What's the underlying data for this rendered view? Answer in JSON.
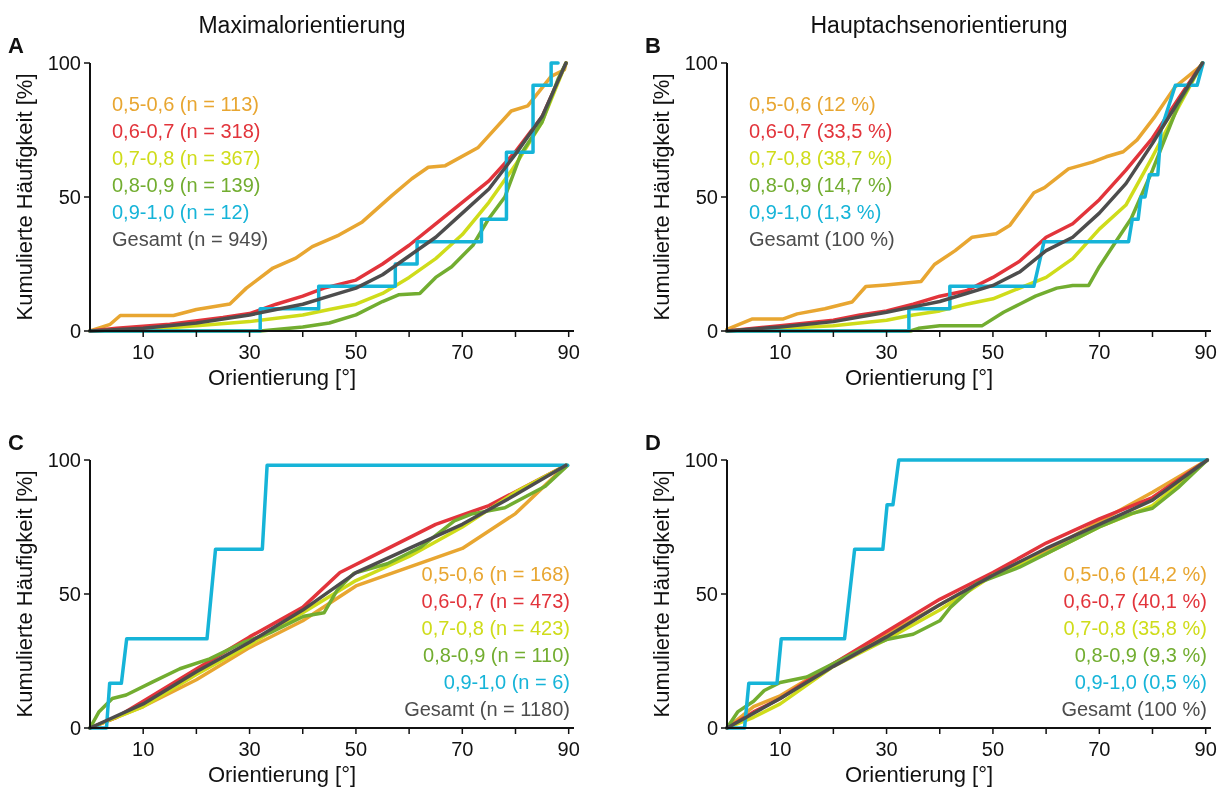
{
  "chart_data": [
    {
      "type": "line",
      "title": "Maximalorientierung",
      "annotations": [
        "A"
      ],
      "xlabel": "Orientierung [°]",
      "ylabel": "Kumulierte Häufigkeit [%]",
      "xlim": [
        0,
        91
      ],
      "xticks": [
        10,
        {
          "value": 20,
          "label": null
        },
        30,
        {
          "value": 40,
          "label": null
        },
        50,
        {
          "value": 60,
          "label": null
        },
        70,
        {
          "value": 80,
          "label": null
        },
        90
      ],
      "ylim": [
        0,
        100
      ],
      "yticks": [
        0,
        50,
        100
      ],
      "grid": false,
      "legend": "top left",
      "line_style": "solid",
      "series": [
        {
          "name": "0,5-0,6 (n = 113)",
          "color": "#e8a631",
          "x": [
            0,
            3.8,
            5.7,
            15.7,
            20,
            26.3,
            29.4,
            34.4,
            38.7,
            41.8,
            46.8,
            51.2,
            56.8,
            60.5,
            63.6,
            66.8,
            73,
            79.2,
            82.3,
            86.7,
            89.2,
            89.5
          ],
          "values": [
            0,
            2.5,
            5.8,
            5.8,
            8,
            10.1,
            16,
            23.5,
            27.2,
            31.5,
            35.8,
            40.7,
            50.6,
            56.8,
            61.1,
            61.7,
            68.5,
            82.1,
            84,
            95,
            97.5,
            100
          ]
        },
        {
          "name": "0,6-0,7 (n = 318)",
          "color": "#e2343b",
          "x": [
            0,
            5,
            15,
            25,
            30,
            35,
            40,
            44,
            50,
            55,
            60,
            65,
            70,
            75,
            80,
            85,
            89.5
          ],
          "values": [
            0,
            1,
            2.5,
            5,
            6.5,
            10,
            13,
            16,
            19,
            25,
            32,
            40,
            48,
            56,
            67,
            80,
            100
          ]
        },
        {
          "name": "0,7-0,8 (n = 367)",
          "color": "#cfdc1a",
          "x": [
            0,
            10,
            20,
            30,
            40,
            45,
            50,
            55,
            60,
            65,
            70,
            75,
            80,
            85,
            89.5
          ],
          "values": [
            0,
            0.5,
            2,
            3.5,
            6,
            8,
            10,
            14,
            20,
            27,
            36,
            48,
            62,
            78,
            100
          ]
        },
        {
          "name": "0,8-0,9 (n = 139)",
          "color": "#72ad30",
          "x": [
            0,
            32,
            40,
            45,
            50,
            55,
            58,
            62,
            65,
            68,
            72,
            75,
            78,
            81,
            85,
            88,
            89.5
          ],
          "values": [
            0,
            0,
            1.5,
            3,
            6,
            11,
            13.5,
            14,
            20,
            24,
            32,
            42,
            50,
            66,
            78,
            94,
            100
          ]
        },
        {
          "name": "0,9-1,0 (n = 12)",
          "color": "#16b4d8",
          "x": [
            0,
            32,
            32,
            43,
            43,
            57.4,
            57.4,
            61.5,
            61.5,
            73.6,
            73.6,
            78.3,
            78.3,
            83.3,
            83.3,
            86.7,
            86.7,
            88
          ],
          "values": [
            0,
            0,
            8.3,
            8.3,
            16.7,
            16.7,
            25,
            25,
            33.3,
            33.3,
            41.7,
            41.7,
            66.7,
            66.7,
            91.7,
            91.7,
            100,
            100
          ]
        },
        {
          "name": "Gesamt (n = 949)",
          "color": "#4d4d4d",
          "x": [
            0,
            10,
            20,
            30,
            35,
            40,
            45,
            50,
            55,
            60,
            65,
            70,
            75,
            80,
            85,
            89.5
          ],
          "values": [
            0,
            1,
            3,
            6,
            8,
            10,
            13,
            16,
            21,
            28,
            35,
            44,
            53,
            66,
            80,
            100
          ]
        }
      ]
    },
    {
      "type": "line",
      "title": "Hauptachsenorientierung",
      "annotations": [
        "B"
      ],
      "xlabel": "Orientierung [°]",
      "ylabel": "Kumulierte Häufigkeit [%]",
      "xlim": [
        0,
        91
      ],
      "xticks": [
        10,
        {
          "value": 20,
          "label": null
        },
        30,
        {
          "value": 40,
          "label": null
        },
        50,
        {
          "value": 60,
          "label": null
        },
        70,
        {
          "value": 80,
          "label": null
        },
        90
      ],
      "ylim": [
        0,
        100
      ],
      "yticks": [
        0,
        50,
        100
      ],
      "grid": false,
      "legend": "top left",
      "line_style": "solid",
      "series": [
        {
          "name": "0,5-0,6 (12 %)",
          "color": "#e8a631",
          "x": [
            0,
            4.8,
            10.6,
            13.2,
            18.4,
            23.5,
            26.1,
            29.9,
            36.5,
            39,
            42.9,
            46.1,
            50.6,
            53.2,
            57.7,
            59.7,
            64.2,
            68.7,
            71.3,
            74.5,
            77.1,
            80.3,
            84.2,
            89.4
          ],
          "values": [
            0.6,
            4.5,
            4.5,
            6.4,
            8.3,
            10.8,
            16.6,
            17.2,
            18.5,
            24.8,
            30,
            35,
            36.3,
            39.5,
            51.6,
            53.5,
            60.5,
            63,
            65,
            66.9,
            71.3,
            79.6,
            91,
            99.4
          ]
        },
        {
          "name": "0,6-0,7 (33,5 %)",
          "color": "#e2343b",
          "x": [
            0,
            10,
            20,
            25,
            30,
            35,
            40,
            45,
            50,
            55,
            60,
            65,
            70,
            75,
            80,
            85,
            89.4
          ],
          "values": [
            0,
            2,
            4,
            6,
            7.5,
            10,
            13,
            15,
            20,
            26,
            35,
            40,
            49,
            60,
            72,
            87,
            100
          ]
        },
        {
          "name": "0,7-0,8 (38,7 %)",
          "color": "#cfdc1a",
          "x": [
            0,
            20,
            30,
            35,
            40,
            45,
            50,
            55,
            60,
            65,
            70,
            75,
            80,
            85,
            89.4
          ],
          "values": [
            0,
            2,
            4,
            6,
            7.5,
            10,
            12,
            16,
            20,
            27,
            38,
            47,
            65,
            84,
            100
          ]
        },
        {
          "name": "0,8-0,9 (14,7 %)",
          "color": "#72ad30",
          "x": [
            0,
            34.5,
            36,
            40,
            48,
            52,
            55,
            58,
            62,
            65,
            68,
            70,
            73,
            76,
            80,
            85,
            89.4
          ],
          "values": [
            0,
            0,
            1,
            2,
            2,
            7,
            10,
            13,
            16,
            17,
            17,
            24,
            33,
            42,
            60,
            85,
            100
          ]
        },
        {
          "name": "0,9-1,0 (1,3 %)",
          "color": "#16b4d8",
          "x": [
            0,
            34.2,
            34.2,
            41.9,
            41.9,
            57.7,
            59.6,
            75.5,
            76.2,
            77.3,
            77.8,
            78.6,
            79.4,
            81,
            81.6,
            84.3,
            88.4,
            89.5
          ],
          "values": [
            0,
            0,
            8.3,
            8.3,
            16.7,
            16.7,
            33.3,
            33.3,
            41.7,
            41.7,
            50,
            50,
            58.3,
            58.3,
            75,
            91.7,
            91.7,
            100
          ]
        },
        {
          "name": "Gesamt (100 %)",
          "color": "#4d4d4d",
          "x": [
            0,
            10,
            20,
            30,
            35,
            40,
            45,
            50,
            55,
            60,
            65,
            70,
            75,
            80,
            85,
            89.4
          ],
          "values": [
            0,
            1.5,
            3.5,
            7,
            9,
            11,
            14,
            17,
            22,
            30,
            35,
            44,
            55,
            70,
            86,
            100
          ]
        }
      ]
    },
    {
      "type": "line",
      "annotations": [
        "C"
      ],
      "xlabel": "Orientierung [°]",
      "ylabel": "Kumulierte Häufigkeit [%]",
      "xlim": [
        0,
        91
      ],
      "xticks": [
        10,
        {
          "value": 20,
          "label": null
        },
        30,
        {
          "value": 40,
          "label": null
        },
        50,
        {
          "value": 60,
          "label": null
        },
        70,
        {
          "value": 80,
          "label": null
        },
        90
      ],
      "ylim": [
        0,
        100
      ],
      "yticks": [
        0,
        50,
        100
      ],
      "grid": false,
      "legend": "bottom right",
      "line_style": "solid",
      "series": [
        {
          "name": "0,5-0,6 (n = 168)",
          "color": "#e8a631",
          "x": [
            0,
            10,
            20,
            30,
            40,
            50,
            60,
            70,
            80,
            89.5
          ],
          "values": [
            0,
            8,
            18,
            30,
            40,
            53,
            60,
            67,
            80,
            98
          ]
        },
        {
          "name": "0,6-0,7 (n = 473)",
          "color": "#e2343b",
          "x": [
            0,
            5,
            10,
            20,
            30,
            40,
            47,
            55,
            65,
            75,
            89.5
          ],
          "values": [
            0,
            4,
            10,
            22,
            34,
            45,
            58,
            66,
            76,
            83,
            98
          ]
        },
        {
          "name": "0,7-0,8 (n = 423)",
          "color": "#cfdc1a",
          "x": [
            0,
            10,
            20,
            30,
            40,
            50,
            60,
            70,
            80,
            89.5
          ],
          "values": [
            0,
            8,
            20,
            31,
            43,
            55,
            64,
            75,
            88,
            98
          ]
        },
        {
          "name": "0,8-0,9 (n = 110)",
          "color": "#72ad30",
          "x": [
            0,
            1.7,
            4.2,
            6.8,
            11.8,
            16.9,
            22.5,
            28.8,
            33.9,
            40.2,
            44,
            46.5,
            49.6,
            55.9,
            62.2,
            68.5,
            71.7,
            78,
            85.6,
            89.8
          ],
          "values": [
            0,
            6.1,
            11,
            12.3,
            17.2,
            22.1,
            25.8,
            31.9,
            35.6,
            41.7,
            43,
            51.5,
            57.7,
            61.3,
            67.5,
            77.3,
            79.8,
            82.2,
            90.2,
            98
          ]
        },
        {
          "name": "0,9-1,0 (n = 6)",
          "color": "#16b4d8",
          "x": [
            0,
            3.1,
            3.7,
            5.9,
            6.9,
            22,
            23.6,
            32.4,
            33.3,
            89.8
          ],
          "values": [
            0,
            0,
            16.7,
            16.7,
            33.3,
            33.3,
            66.7,
            66.7,
            98,
            98
          ]
        },
        {
          "name": "Gesamt (n = 1180)",
          "color": "#4d4d4d",
          "x": [
            0,
            10,
            20,
            30,
            40,
            50,
            60,
            70,
            80,
            89.5
          ],
          "values": [
            0,
            9,
            21,
            32,
            44,
            58,
            67,
            76,
            87,
            98
          ]
        }
      ]
    },
    {
      "type": "line",
      "annotations": [
        "D"
      ],
      "xlabel": "Orientierung [°]",
      "ylabel": "Kumulierte Häufigkeit [%]",
      "xlim": [
        0,
        91
      ],
      "xticks": [
        10,
        {
          "value": 20,
          "label": null
        },
        30,
        {
          "value": 40,
          "label": null
        },
        50,
        {
          "value": 60,
          "label": null
        },
        70,
        {
          "value": 80,
          "label": null
        },
        90
      ],
      "ylim": [
        0,
        100
      ],
      "yticks": [
        0,
        50,
        100
      ],
      "grid": false,
      "legend": "bottom right",
      "line_style": "solid",
      "series": [
        {
          "name": "0,5-0,6 (14,2 %)",
          "color": "#e8a631",
          "x": [
            0,
            5,
            10,
            20,
            30,
            40,
            50,
            60,
            70,
            80,
            90.3
          ],
          "values": [
            0,
            8,
            12,
            24,
            35,
            46,
            57,
            66,
            77,
            88,
            100
          ]
        },
        {
          "name": "0,6-0,7 (40,1 %)",
          "color": "#e2343b",
          "x": [
            0,
            5,
            10,
            20,
            30,
            40,
            50,
            60,
            70,
            80,
            90.3
          ],
          "values": [
            0,
            6,
            11,
            24,
            36,
            48,
            58,
            69,
            78,
            86,
            100
          ]
        },
        {
          "name": "0,7-0,8 (35,8 %)",
          "color": "#cfdc1a",
          "x": [
            0,
            5,
            10,
            20,
            30,
            40,
            50,
            60,
            70,
            80,
            90.3
          ],
          "values": [
            0,
            4,
            9,
            23,
            33,
            44,
            57,
            65,
            75,
            83,
            100
          ]
        },
        {
          "name": "0,8-0,9 (9,3 %)",
          "color": "#72ad30",
          "x": [
            0,
            2,
            5,
            7,
            10,
            15,
            20,
            25,
            30,
            35,
            40,
            42,
            47,
            55,
            65,
            70,
            76,
            80,
            85,
            90.3
          ],
          "values": [
            0,
            6,
            10,
            14,
            17,
            19,
            24,
            29,
            33,
            35,
            40,
            45,
            54,
            60,
            70,
            75,
            80,
            82,
            90,
            100
          ]
        },
        {
          "name": "0,9-1,0 (0,5 %)",
          "color": "#16b4d8",
          "x": [
            0,
            3.3,
            4.1,
            9.4,
            10.2,
            22.1,
            24,
            29.3,
            30.1,
            31.2,
            32.3,
            90.3
          ],
          "values": [
            0,
            0,
            16.7,
            16.7,
            33.3,
            33.3,
            66.7,
            66.7,
            83.3,
            83.3,
            100,
            100
          ]
        },
        {
          "name": "Gesamt (100 %)",
          "color": "#4d4d4d",
          "x": [
            0,
            10,
            20,
            30,
            40,
            50,
            60,
            70,
            80,
            90.3
          ],
          "values": [
            0,
            11,
            23,
            34,
            46,
            57,
            67,
            76,
            85,
            100
          ]
        }
      ]
    }
  ]
}
